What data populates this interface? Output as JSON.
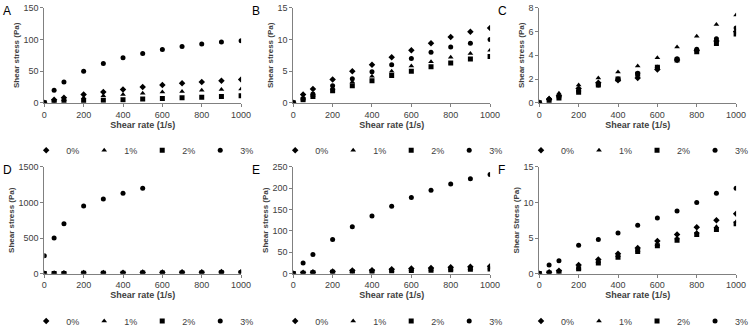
{
  "chart_data": [
    {
      "type": "scatter",
      "title": "A",
      "x_label": "Shear rate (1/s)",
      "y_label": "Shear stress (Pa)",
      "x": [
        0,
        50,
        100,
        200,
        300,
        400,
        500,
        600,
        700,
        800,
        900,
        1000
      ],
      "xlim": [
        0,
        1000
      ],
      "xticks": [
        0,
        200,
        400,
        600,
        800,
        1000
      ],
      "ylim": [
        0,
        150
      ],
      "yticks": [
        0,
        50,
        100,
        150
      ],
      "grid": false,
      "legend": "bottom",
      "series": [
        {
          "name": "0%",
          "color": "#000000",
          "marker": "diamond",
          "values": [
            0,
            5,
            8,
            13,
            17,
            21,
            25,
            28,
            31,
            33,
            35,
            37
          ]
        },
        {
          "name": "1%",
          "color": "#000000",
          "marker": "triangle-up",
          "values": [
            0,
            3,
            5,
            8,
            11,
            13,
            15,
            17,
            18,
            20,
            21,
            22
          ]
        },
        {
          "name": "2%",
          "color": "#000000",
          "marker": "square",
          "values": [
            0,
            1,
            2,
            3,
            4,
            5,
            6,
            7,
            8,
            9,
            10,
            11
          ]
        },
        {
          "name": "3%",
          "color": "#000000",
          "marker": "circle",
          "values": [
            0,
            20,
            33,
            50,
            62,
            71,
            78,
            84,
            89,
            93,
            96,
            98
          ]
        }
      ]
    },
    {
      "type": "scatter",
      "title": "B",
      "x_label": "Shear rate (1/s)",
      "y_label": "Shear stress (Pa)",
      "x": [
        0,
        50,
        100,
        200,
        300,
        400,
        500,
        600,
        700,
        800,
        900,
        1000
      ],
      "xlim": [
        0,
        1000
      ],
      "xticks": [
        0,
        200,
        400,
        600,
        800,
        1000
      ],
      "ylim": [
        0,
        15
      ],
      "yticks": [
        0,
        5,
        10,
        15
      ],
      "grid": false,
      "legend": "bottom",
      "series": [
        {
          "name": "0%",
          "color": "#000000",
          "marker": "diamond",
          "values": [
            0,
            1.3,
            2.2,
            3.7,
            5,
            6,
            7.2,
            8.3,
            9.4,
            10.4,
            11.2,
            11.8
          ]
        },
        {
          "name": "1%",
          "color": "#000000",
          "marker": "triangle-up",
          "values": [
            0,
            0.6,
            1.2,
            2.3,
            3.3,
            4.2,
            5,
            5.8,
            6.5,
            7.2,
            7.8,
            8.3
          ]
        },
        {
          "name": "2%",
          "color": "#000000",
          "marker": "square",
          "values": [
            0,
            0.5,
            1,
            1.9,
            2.7,
            3.5,
            4.3,
            5,
            5.7,
            6.3,
            6.9,
            7.3
          ]
        },
        {
          "name": "3%",
          "color": "#000000",
          "marker": "circle",
          "values": [
            0,
            0.7,
            1.4,
            2.7,
            3.8,
            4.9,
            6,
            7,
            8,
            8.8,
            9.4,
            10
          ]
        }
      ]
    },
    {
      "type": "scatter",
      "title": "C",
      "x_label": "Shear rate (1/s)",
      "y_label": "Shear stress (Pa)",
      "x": [
        0,
        50,
        100,
        200,
        300,
        400,
        500,
        600,
        700,
        800,
        900,
        1000
      ],
      "xlim": [
        0,
        1000
      ],
      "xticks": [
        0,
        200,
        400,
        600,
        800,
        1000
      ],
      "ylim": [
        0,
        8
      ],
      "yticks": [
        0,
        2,
        4,
        6,
        8
      ],
      "grid": false,
      "legend": "bottom",
      "series": [
        {
          "name": "0%",
          "color": "#000000",
          "marker": "diamond",
          "values": [
            0,
            0.3,
            0.6,
            1.2,
            1.7,
            1.9,
            2.1,
            2.8,
            3.6,
            4.4,
            5.2,
            6.0
          ]
        },
        {
          "name": "1%",
          "color": "#000000",
          "marker": "triangle-up",
          "values": [
            0,
            0.4,
            0.8,
            1.5,
            2.1,
            2.6,
            3.1,
            3.8,
            4.7,
            5.6,
            6.6,
            7.4
          ]
        },
        {
          "name": "2%",
          "color": "#000000",
          "marker": "square",
          "values": [
            0,
            0.2,
            0.4,
            0.9,
            1.5,
            2.0,
            2.4,
            3.0,
            3.6,
            4.3,
            5.0,
            5.8
          ]
        },
        {
          "name": "3%",
          "color": "#000000",
          "marker": "circle",
          "values": [
            0,
            0.3,
            0.5,
            1.0,
            1.5,
            2.0,
            2.5,
            3.0,
            3.7,
            4.5,
            5.4,
            6.3
          ]
        }
      ]
    },
    {
      "type": "scatter",
      "title": "D",
      "x_label": "Shear rate (1/s)",
      "y_label": "Shear stress (Pa)",
      "x": [
        0,
        50,
        100,
        200,
        300,
        400,
        500,
        600,
        700,
        800,
        900,
        1000
      ],
      "xlim": [
        0,
        1000
      ],
      "xticks": [
        0,
        200,
        400,
        600,
        800,
        1000
      ],
      "ylim": [
        0,
        1500
      ],
      "yticks": [
        0,
        500,
        1000,
        1500
      ],
      "grid": false,
      "legend": "bottom",
      "series": [
        {
          "name": "0%",
          "color": "#000000",
          "marker": "diamond",
          "values": [
            0,
            3,
            5,
            8,
            10,
            12,
            14,
            16,
            18,
            20,
            22,
            24
          ]
        },
        {
          "name": "1%",
          "color": "#000000",
          "marker": "triangle-up",
          "values": [
            0,
            2,
            4,
            6,
            8,
            10,
            12,
            13,
            15,
            16,
            17,
            18
          ]
        },
        {
          "name": "2%",
          "color": "#000000",
          "marker": "square",
          "values": [
            0,
            1,
            2,
            4,
            5,
            6,
            7,
            8,
            9,
            10,
            11,
            12
          ]
        },
        {
          "name": "3%",
          "color": "#000000",
          "marker": "circle",
          "values": [
            250,
            500,
            700,
            950,
            1050,
            1130,
            1200,
            null,
            null,
            null,
            null,
            null
          ]
        }
      ]
    },
    {
      "type": "scatter",
      "title": "E",
      "x_label": "Shear rate (1/s)",
      "y_label": "Shear stress (Pa)",
      "x": [
        0,
        50,
        100,
        200,
        300,
        400,
        500,
        600,
        700,
        800,
        900,
        1000
      ],
      "xlim": [
        0,
        1000
      ],
      "xticks": [
        0,
        200,
        400,
        600,
        800,
        1000
      ],
      "ylim": [
        0,
        250
      ],
      "yticks": [
        0,
        50,
        100,
        150,
        200,
        250
      ],
      "grid": false,
      "legend": "bottom",
      "series": [
        {
          "name": "0%",
          "color": "#000000",
          "marker": "diamond",
          "values": [
            0,
            2,
            3,
            5,
            7,
            8,
            10,
            12,
            13,
            15,
            16,
            17
          ]
        },
        {
          "name": "1%",
          "color": "#000000",
          "marker": "triangle-up",
          "values": [
            0,
            1,
            2,
            4,
            5,
            6,
            8,
            9,
            10,
            11,
            12,
            13
          ]
        },
        {
          "name": "2%",
          "color": "#000000",
          "marker": "square",
          "values": [
            0,
            1,
            2,
            3,
            4,
            5,
            6,
            7,
            8,
            9,
            10,
            11
          ]
        },
        {
          "name": "3%",
          "color": "#000000",
          "marker": "circle",
          "values": [
            0,
            25,
            45,
            80,
            110,
            135,
            158,
            178,
            195,
            210,
            222,
            232
          ]
        }
      ]
    },
    {
      "type": "scatter",
      "title": "F",
      "x_label": "Shear rate (1/s)",
      "y_label": "Shear Stress (Pa)",
      "x": [
        0,
        50,
        100,
        200,
        300,
        400,
        500,
        600,
        700,
        800,
        900,
        1000
      ],
      "xlim": [
        0,
        1000
      ],
      "xticks": [
        0,
        200,
        400,
        600,
        800,
        1000
      ],
      "ylim": [
        0,
        15
      ],
      "yticks": [
        0,
        5,
        10,
        15
      ],
      "grid": false,
      "legend": "bottom",
      "series": [
        {
          "name": "0%",
          "color": "#000000",
          "marker": "diamond",
          "values": [
            0,
            0.2,
            0.4,
            1.2,
            2,
            2.8,
            3.6,
            4.6,
            5.5,
            6.5,
            7.5,
            8.4
          ]
        },
        {
          "name": "1%",
          "color": "#000000",
          "marker": "triangle-up",
          "values": [
            0,
            0.1,
            0.2,
            0.8,
            1.7,
            2.5,
            3.3,
            4.1,
            5,
            5.8,
            6.6,
            7.3
          ]
        },
        {
          "name": "2%",
          "color": "#000000",
          "marker": "square",
          "values": [
            0,
            0.1,
            0.2,
            0.7,
            1.5,
            2.3,
            3.1,
            3.9,
            4.7,
            5.5,
            6.2,
            7.0
          ]
        },
        {
          "name": "3%",
          "color": "#000000",
          "marker": "circle",
          "values": [
            0,
            1.2,
            1.8,
            4,
            4.8,
            5.7,
            6.8,
            7.8,
            8.8,
            10,
            11.3,
            12
          ]
        }
      ]
    }
  ]
}
